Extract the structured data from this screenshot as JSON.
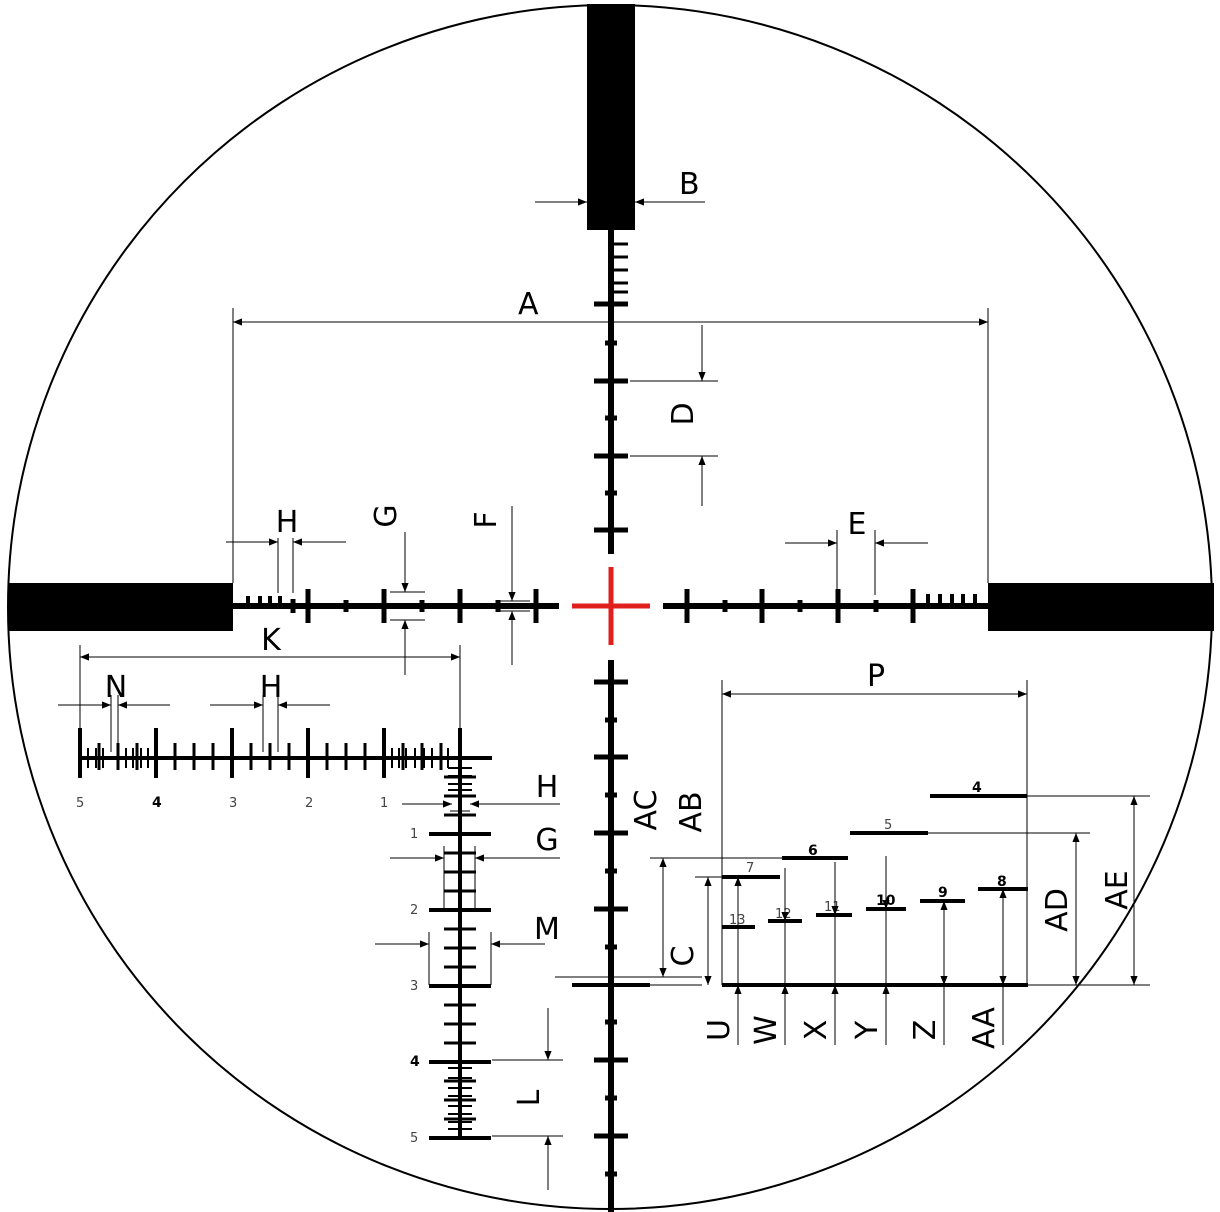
{
  "reticle": {
    "center_color": "#e0201c",
    "line_color": "#000000"
  },
  "dimension_labels": {
    "A": "A",
    "B": "B",
    "C": "C",
    "D": "D",
    "E": "E",
    "F": "F",
    "G": "G",
    "H": "H",
    "K": "K",
    "L": "L",
    "M": "M",
    "N": "N",
    "P": "P",
    "U": "U",
    "W": "W",
    "X": "X",
    "Y": "Y",
    "Z": "Z",
    "AA": "AA",
    "AB": "AB",
    "AC": "AC",
    "AD": "AD",
    "AE": "AE"
  },
  "horizontal_scale_numbers": [
    "5",
    "4",
    "3",
    "2",
    "1"
  ],
  "vertical_scale_numbers": [
    "1",
    "2",
    "3",
    "4",
    "5"
  ],
  "holdover_numbers": {
    "n4": "4",
    "n5": "5",
    "n6": "6",
    "n7": "7",
    "n8": "8",
    "n9": "9",
    "n10": "10",
    "n11": "11",
    "n12": "12",
    "n13": "13"
  }
}
